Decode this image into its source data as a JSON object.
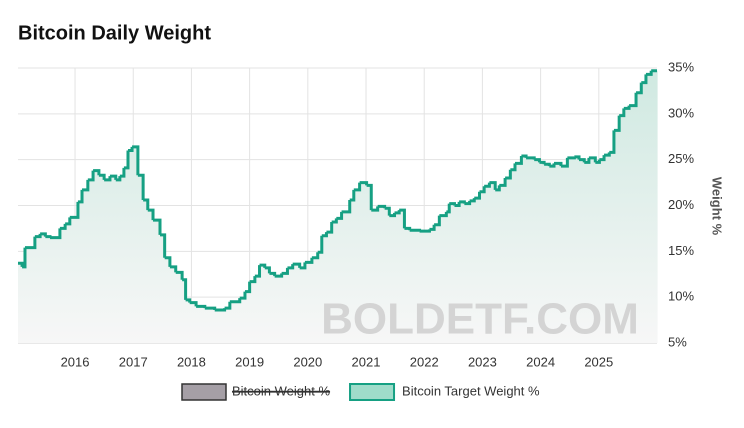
{
  "chart_data": {
    "type": "step",
    "title": "Bitcoin Daily Weight",
    "y_label": "Weight %",
    "watermark": "BOLDETF.COM",
    "xlim": [
      2015.02,
      2026.0
    ],
    "xticks": [
      2016,
      2017,
      2018,
      2019,
      2020,
      2021,
      2022,
      2023,
      2024,
      2025
    ],
    "ylim": [
      5,
      35
    ],
    "yticks": [
      {
        "value": 5,
        "label": "5%"
      },
      {
        "value": 10,
        "label": "10%"
      },
      {
        "value": 15,
        "label": "15%"
      },
      {
        "value": 20,
        "label": "20%"
      },
      {
        "value": 25,
        "label": "25%"
      },
      {
        "value": 30,
        "label": "30%"
      },
      {
        "value": 35,
        "label": "35%"
      }
    ],
    "grid": true,
    "legend": "bottom",
    "hidden_series": [
      {
        "name": "Bitcoin Weight %",
        "color": "#a59fa6"
      }
    ],
    "x": [
      2015.02,
      2015.09,
      2015.14,
      2015.31,
      2015.4,
      2015.49,
      2015.57,
      2015.74,
      2015.83,
      2015.91,
      2016.05,
      2016.12,
      2016.22,
      2016.31,
      2016.41,
      2016.5,
      2016.6,
      2016.7,
      2016.77,
      2016.84,
      2016.91,
      2016.98,
      2017.08,
      2017.17,
      2017.25,
      2017.34,
      2017.46,
      2017.54,
      2017.63,
      2017.73,
      2017.84,
      2017.9,
      2017.97,
      2018.08,
      2018.23,
      2018.4,
      2018.57,
      2018.66,
      2018.83,
      2018.92,
      2019.0,
      2019.09,
      2019.17,
      2019.26,
      2019.34,
      2019.43,
      2019.55,
      2019.65,
      2019.74,
      2019.86,
      2019.95,
      2020.07,
      2020.17,
      2020.24,
      2020.32,
      2020.41,
      2020.49,
      2020.58,
      2020.72,
      2020.79,
      2020.89,
      2021.01,
      2021.09,
      2021.2,
      2021.32,
      2021.4,
      2021.49,
      2021.57,
      2021.66,
      2021.75,
      2021.92,
      2022.09,
      2022.17,
      2022.26,
      2022.38,
      2022.43,
      2022.52,
      2022.6,
      2022.69,
      2022.78,
      2022.86,
      2022.95,
      2023.03,
      2023.12,
      2023.22,
      2023.29,
      2023.39,
      2023.48,
      2023.56,
      2023.67,
      2023.75,
      2023.89,
      2023.98,
      2024.06,
      2024.15,
      2024.23,
      2024.35,
      2024.46,
      2024.58,
      2024.66,
      2024.75,
      2024.83,
      2024.94,
      2025.01,
      2025.09,
      2025.18,
      2025.26,
      2025.35,
      2025.43,
      2025.52,
      2025.64,
      2025.73,
      2025.81,
      2025.9
    ],
    "series": [
      {
        "name": "Bitcoin Target Weight %",
        "color": "#16a083",
        "values": [
          13.7,
          13.3,
          15.4,
          16.6,
          16.9,
          16.6,
          16.5,
          17.5,
          18.0,
          18.7,
          20.4,
          21.7,
          22.8,
          23.8,
          23.3,
          22.8,
          23.2,
          22.8,
          23.2,
          24.1,
          26.0,
          26.4,
          23.3,
          20.6,
          19.5,
          18.4,
          16.8,
          14.3,
          13.3,
          12.7,
          11.9,
          9.7,
          9.4,
          9.0,
          8.8,
          8.6,
          8.8,
          9.5,
          9.9,
          10.6,
          11.7,
          12.3,
          13.5,
          13.2,
          12.6,
          12.3,
          12.6,
          13.2,
          13.6,
          13.2,
          13.8,
          14.3,
          14.9,
          16.7,
          17.1,
          18.2,
          18.6,
          19.3,
          20.6,
          21.7,
          22.5,
          22.2,
          19.5,
          19.9,
          19.7,
          18.9,
          19.2,
          19.5,
          17.5,
          17.3,
          17.2,
          17.4,
          17.9,
          18.9,
          19.3,
          20.2,
          20.0,
          20.4,
          20.2,
          20.5,
          20.8,
          21.5,
          22.1,
          22.5,
          21.7,
          22.2,
          23.0,
          23.9,
          24.6,
          25.4,
          25.2,
          25.0,
          24.7,
          24.5,
          24.3,
          24.6,
          24.3,
          25.2,
          25.3,
          25.0,
          24.7,
          25.2,
          24.7,
          25.0,
          25.5,
          25.8,
          28.2,
          29.8,
          30.6,
          30.9,
          32.3,
          33.4,
          34.3,
          34.7
        ]
      }
    ]
  }
}
